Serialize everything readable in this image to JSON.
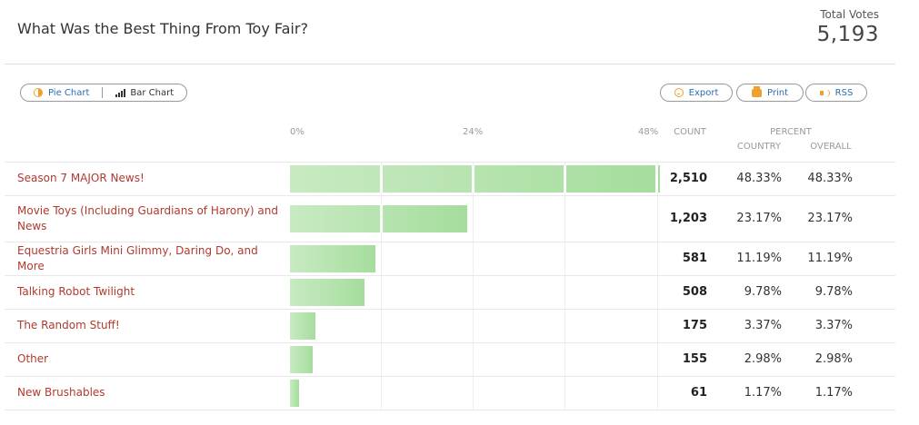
{
  "title": "What Was the Best Thing From Toy Fair?",
  "total": {
    "label": "Total Votes",
    "value": "5,193"
  },
  "chart_toggle": {
    "pie_label": "Pie Chart",
    "bar_label": "Bar Chart",
    "active": "bar"
  },
  "actions": {
    "export_label": "Export",
    "print_label": "Print",
    "rss_label": "RSS"
  },
  "columns": {
    "count": "COUNT",
    "percent": "PERCENT",
    "country": "COUNTRY",
    "overall": "OVERALL"
  },
  "colors": {
    "bar_light": "#c8eac2",
    "bar_dark": "#a5dd9d",
    "label": "#b03a2e",
    "accent": "#f0a030",
    "link": "#2a6fb0"
  },
  "chart_data": {
    "type": "bar",
    "orientation": "horizontal",
    "title": "What Was the Best Thing From Toy Fair?",
    "x_ticks": [
      "0%",
      "24%",
      "48%"
    ],
    "xlim": [
      0,
      48
    ],
    "grid": true,
    "categories": [
      "Season 7 MAJOR News!",
      "Movie Toys (Including Guardians of Harony) and News",
      "Equestria Girls Mini Glimmy, Daring Do, and More",
      "Talking Robot Twilight",
      "The Random Stuff!",
      "Other",
      "New Brushables"
    ],
    "rows": [
      {
        "label": "Season 7 MAJOR News!",
        "count": "2,510",
        "country": "48.33%",
        "overall": "48.33%",
        "value": 48.33
      },
      {
        "label": "Movie Toys (Including Guardians of Harony) and News",
        "count": "1,203",
        "country": "23.17%",
        "overall": "23.17%",
        "value": 23.17
      },
      {
        "label": "Equestria Girls Mini Glimmy, Daring Do, and More",
        "count": "581",
        "country": "11.19%",
        "overall": "11.19%",
        "value": 11.19
      },
      {
        "label": "Talking Robot Twilight",
        "count": "508",
        "country": "9.78%",
        "overall": "9.78%",
        "value": 9.78
      },
      {
        "label": "The Random Stuff!",
        "count": "175",
        "country": "3.37%",
        "overall": "3.37%",
        "value": 3.37
      },
      {
        "label": "Other",
        "count": "155",
        "country": "2.98%",
        "overall": "2.98%",
        "value": 2.98
      },
      {
        "label": "New Brushables",
        "count": "61",
        "country": "1.17%",
        "overall": "1.17%",
        "value": 1.17
      }
    ]
  }
}
